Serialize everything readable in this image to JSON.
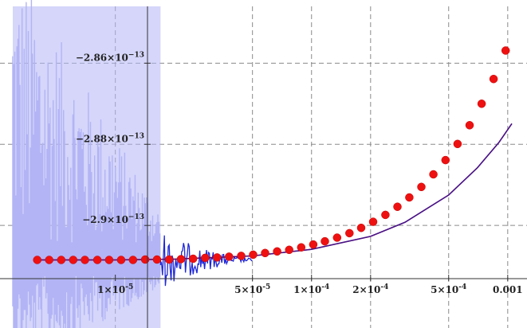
{
  "chart_data": {
    "type": "line",
    "xscale": "log",
    "xlim": [
      3e-06,
      0.0011
    ],
    "ylim": [
      -2.919e-13,
      -2.846e-13
    ],
    "grid": true,
    "xticks": [
      {
        "value": 1e-05,
        "mantissa": "1",
        "exp": "-5",
        "label": "1×10⁻⁵"
      },
      {
        "value": 5e-05,
        "mantissa": "5",
        "exp": "-5",
        "label": "5×10⁻⁵"
      },
      {
        "value": 0.0001,
        "mantissa": "1",
        "exp": "-4",
        "label": "1×10⁻⁴"
      },
      {
        "value": 0.0002,
        "mantissa": "2",
        "exp": "-4",
        "label": "2×10⁻⁴"
      },
      {
        "value": 0.0005,
        "mantissa": "5",
        "exp": "-4",
        "label": "5×10⁻⁴"
      },
      {
        "value": 0.001,
        "plain": "0.001",
        "label": "0.001"
      }
    ],
    "yticks": [
      {
        "value": -2.86e-13,
        "mantissa": "−2.86",
        "exp": "−13",
        "label": "−2.86×10⁻¹³"
      },
      {
        "value": -2.88e-13,
        "mantissa": "−2.88",
        "exp": "−13",
        "label": "−2.88×10⁻¹³"
      },
      {
        "value": -2.9e-13,
        "mantissa": "−2.9",
        "exp": "−13",
        "label": "−2.9×10⁻¹³"
      }
    ],
    "series": [
      {
        "kind": "noisy-band",
        "x_range": [
          3e-06,
          1.7e-05
        ],
        "value": -2.9085e-13,
        "color": "#b2b4f5"
      },
      {
        "kind": "noisy-line",
        "x_range": [
          1.7e-05,
          5e-05
        ],
        "value": -2.9085e-13,
        "color": "#1f28d8"
      },
      {
        "kind": "curve",
        "color": "#2b0f9a",
        "x": [
          4e-06,
          1e-05,
          2e-05,
          5e-05,
          0.0001,
          0.0002,
          0.0003,
          0.0005,
          0.0007,
          0.0009,
          0.00105
        ],
        "y": [
          -2.9085e-13,
          -2.9085e-13,
          -2.9083e-13,
          -2.9075e-13,
          -2.9059e-13,
          -2.9027e-13,
          -2.8992e-13,
          -2.8925e-13,
          -2.8858e-13,
          -2.8796e-13,
          -2.8749e-13
        ]
      },
      {
        "kind": "points",
        "color": "#ee1111",
        "x": [
          4e-06,
          4.6e-06,
          5.3e-06,
          6.1e-06,
          7e-06,
          8.1e-06,
          9.3e-06,
          1.07e-05,
          1.23e-05,
          1.42e-05,
          1.63e-05,
          1.88e-05,
          2.16e-05,
          2.49e-05,
          2.87e-05,
          3.3e-05,
          3.8e-05,
          4.38e-05,
          5.04e-05,
          5.8e-05,
          6.68e-05,
          7.69e-05,
          8.86e-05,
          0.000102,
          0.000117,
          0.000135,
          0.000156,
          0.000179,
          0.000206,
          0.000238,
          0.000274,
          0.000315,
          0.000363,
          0.000418,
          0.000482,
          0.000555,
          0.000639,
          0.000736,
          0.000847,
          0.000976
        ],
        "y": [
          -2.9085e-13,
          -2.9085e-13,
          -2.9085e-13,
          -2.9085e-13,
          -2.9085e-13,
          -2.9085e-13,
          -2.9085e-13,
          -2.9085e-13,
          -2.9085e-13,
          -2.9084e-13,
          -2.9084e-13,
          -2.9084e-13,
          -2.9083e-13,
          -2.9082e-13,
          -2.908e-13,
          -2.9079e-13,
          -2.9077e-13,
          -2.9075e-13,
          -2.9072e-13,
          -2.9068e-13,
          -2.9064e-13,
          -2.906e-13,
          -2.9054e-13,
          -2.9047e-13,
          -2.9039e-13,
          -2.903e-13,
          -2.9019e-13,
          -2.9006e-13,
          -2.8991e-13,
          -2.8974e-13,
          -2.8954e-13,
          -2.8931e-13,
          -2.8905e-13,
          -2.8874e-13,
          -2.8839e-13,
          -2.8799e-13,
          -2.8753e-13,
          -2.87e-13,
          -2.8639e-13,
          -2.8569e-13
        ]
      }
    ]
  }
}
